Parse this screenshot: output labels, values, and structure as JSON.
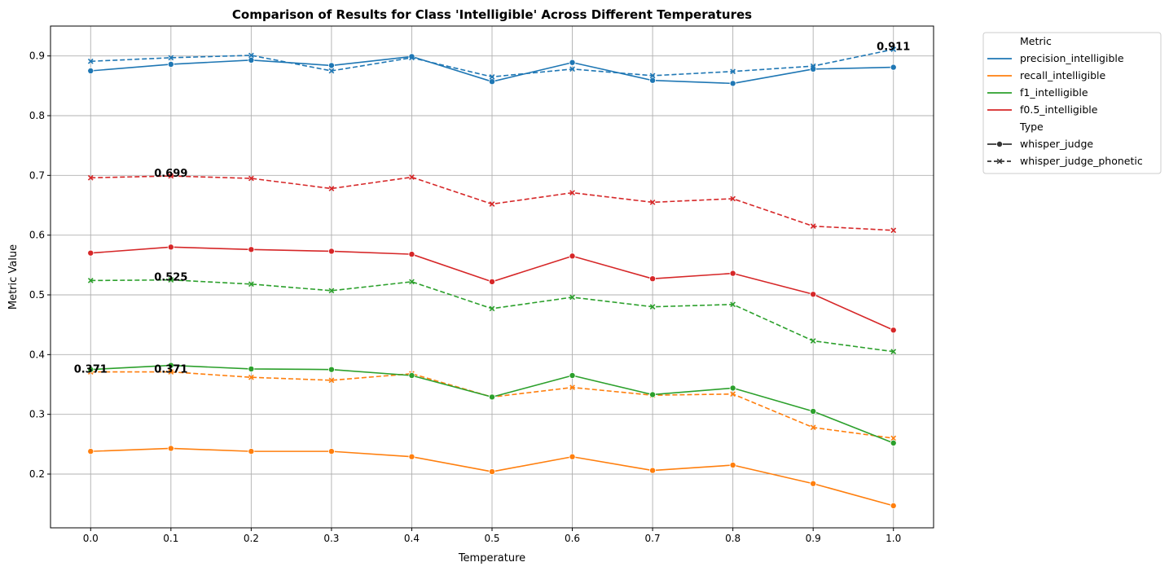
{
  "chart_data": {
    "type": "line",
    "title": "Comparison of Results for Class 'Intelligible' Across Different Temperatures",
    "xlabel": "Temperature",
    "ylabel": "Metric Value",
    "x": [
      0.0,
      0.1,
      0.2,
      0.3,
      0.4,
      0.5,
      0.6,
      0.7,
      0.8,
      0.9,
      1.0
    ],
    "x_tick_labels": [
      "0.0",
      "0.1",
      "0.2",
      "0.3",
      "0.4",
      "0.5",
      "0.6",
      "0.7",
      "0.8",
      "0.9",
      "1.0"
    ],
    "y_ticks": [
      0.2,
      0.3,
      0.4,
      0.5,
      0.6,
      0.7,
      0.8,
      0.9
    ],
    "y_tick_labels": [
      "0.2",
      "0.3",
      "0.4",
      "0.5",
      "0.6",
      "0.7",
      "0.8",
      "0.9"
    ],
    "xlim": [
      -0.05,
      1.05
    ],
    "ylim": [
      0.11,
      0.95
    ],
    "grid": true,
    "legend_placement": "outside top-right",
    "legend": {
      "metric_title": "Metric",
      "type_title": "Type",
      "metrics": [
        {
          "name": "precision_intelligible",
          "color": "#1f77b4"
        },
        {
          "name": "recall_intelligible",
          "color": "#ff7f0e"
        },
        {
          "name": "f1_intelligible",
          "color": "#2ca02c"
        },
        {
          "name": "f0.5_intelligible",
          "color": "#d62728"
        }
      ],
      "types": [
        {
          "name": "whisper_judge",
          "style": "solid",
          "marker": "circle"
        },
        {
          "name": "whisper_judge_phonetic",
          "style": "dashed",
          "marker": "x"
        }
      ]
    },
    "series": [
      {
        "name": "precision_intelligible",
        "type": "whisper_judge",
        "color": "#1f77b4",
        "dashed": false,
        "marker": "circle",
        "values": [
          0.875,
          0.886,
          0.893,
          0.884,
          0.899,
          0.857,
          0.889,
          0.859,
          0.854,
          0.878,
          0.881
        ]
      },
      {
        "name": "precision_intelligible",
        "type": "whisper_judge_phonetic",
        "color": "#1f77b4",
        "dashed": true,
        "marker": "x",
        "values": [
          0.891,
          0.897,
          0.901,
          0.875,
          0.897,
          0.865,
          0.878,
          0.867,
          0.874,
          0.883,
          0.911
        ]
      },
      {
        "name": "recall_intelligible",
        "type": "whisper_judge",
        "color": "#ff7f0e",
        "dashed": false,
        "marker": "circle",
        "values": [
          0.238,
          0.243,
          0.238,
          0.238,
          0.229,
          0.204,
          0.229,
          0.206,
          0.215,
          0.184,
          0.147
        ]
      },
      {
        "name": "recall_intelligible",
        "type": "whisper_judge_phonetic",
        "color": "#ff7f0e",
        "dashed": true,
        "marker": "x",
        "values": [
          0.371,
          0.371,
          0.362,
          0.357,
          0.368,
          0.329,
          0.345,
          0.332,
          0.334,
          0.278,
          0.26
        ]
      },
      {
        "name": "f1_intelligible",
        "type": "whisper_judge",
        "color": "#2ca02c",
        "dashed": false,
        "marker": "circle",
        "values": [
          0.375,
          0.382,
          0.376,
          0.375,
          0.365,
          0.329,
          0.365,
          0.333,
          0.344,
          0.305,
          0.252
        ]
      },
      {
        "name": "f1_intelligible",
        "type": "whisper_judge_phonetic",
        "color": "#2ca02c",
        "dashed": true,
        "marker": "x",
        "values": [
          0.524,
          0.525,
          0.518,
          0.507,
          0.522,
          0.477,
          0.496,
          0.48,
          0.484,
          0.423,
          0.405
        ]
      },
      {
        "name": "f0.5_intelligible",
        "type": "whisper_judge",
        "color": "#d62728",
        "dashed": false,
        "marker": "circle",
        "values": [
          0.57,
          0.58,
          0.576,
          0.573,
          0.568,
          0.522,
          0.565,
          0.527,
          0.536,
          0.501,
          0.441
        ]
      },
      {
        "name": "f0.5_intelligible",
        "type": "whisper_judge_phonetic",
        "color": "#d62728",
        "dashed": true,
        "marker": "x",
        "values": [
          0.696,
          0.699,
          0.695,
          0.678,
          0.697,
          0.652,
          0.671,
          0.655,
          0.661,
          0.615,
          0.608
        ]
      }
    ],
    "annotations": [
      {
        "text": "0.911",
        "x": 1.0,
        "y": 0.911
      },
      {
        "text": "0.699",
        "x": 0.1,
        "y": 0.699
      },
      {
        "text": "0.525",
        "x": 0.1,
        "y": 0.525
      },
      {
        "text": "0.371",
        "x": 0.0,
        "y": 0.371
      },
      {
        "text": "0.371",
        "x": 0.1,
        "y": 0.371
      }
    ]
  }
}
